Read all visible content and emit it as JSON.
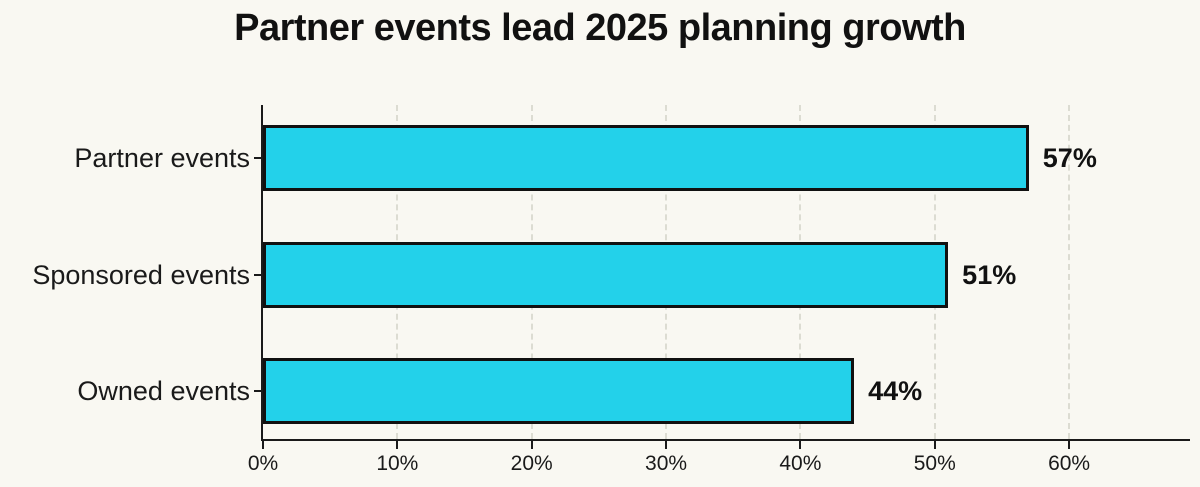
{
  "page": {
    "background_color": "#f9f8f2"
  },
  "chart_data": {
    "type": "bar",
    "orientation": "horizontal",
    "title": "Partner events lead 2025 planning growth",
    "categories": [
      "Partner events",
      "Sponsored events",
      "Owned events"
    ],
    "values": [
      57,
      51,
      44
    ],
    "value_labels": [
      "57%",
      "51%",
      "44%"
    ],
    "x_ticks": [
      0,
      10,
      20,
      30,
      40,
      50,
      60
    ],
    "x_tick_labels": [
      "0%",
      "10%",
      "20%",
      "30%",
      "40%",
      "50%",
      "60%"
    ],
    "xlim": [
      0,
      69
    ],
    "xlabel": "",
    "ylabel": "",
    "grid": "vertical-dashed",
    "legend": "none",
    "bar_color": "#23d1ea",
    "bar_border_color": "#111111",
    "background_color": "#f9f8f2",
    "gridline_color": "#dcdcd2",
    "axis_color": "#1a1a1a",
    "text_color": "#111111"
  }
}
